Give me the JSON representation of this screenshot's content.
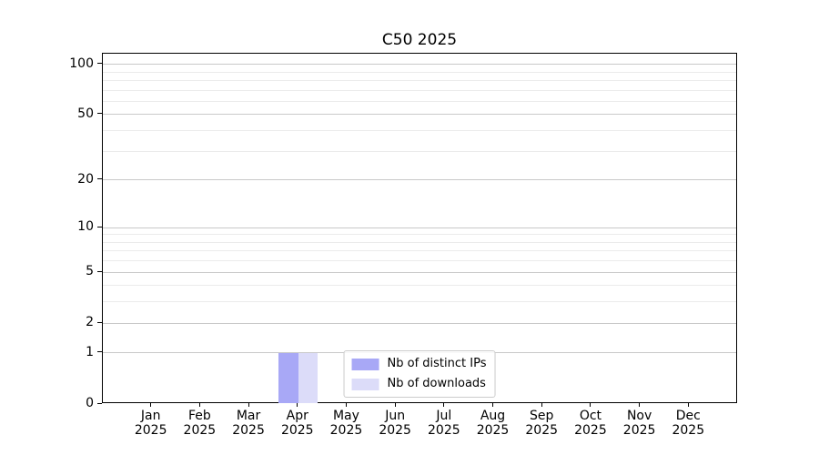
{
  "figure": {
    "title": "C50 2025"
  },
  "chart_data": {
    "type": "bar",
    "title": "C50 2025",
    "xlabel": "",
    "ylabel": "",
    "categories": [
      "Jan 2025",
      "Feb 2025",
      "Mar 2025",
      "Apr 2025",
      "May 2025",
      "Jun 2025",
      "Jul 2025",
      "Aug 2025",
      "Sep 2025",
      "Oct 2025",
      "Nov 2025",
      "Dec 2025"
    ],
    "x_tick_months": [
      "Jan",
      "Feb",
      "Mar",
      "Apr",
      "May",
      "Jun",
      "Jul",
      "Aug",
      "Sep",
      "Oct",
      "Nov",
      "Dec"
    ],
    "x_tick_year": "2025",
    "series": [
      {
        "name": "Nb of distinct IPs",
        "color": "#a8a8f6",
        "values": [
          0,
          0,
          0,
          1,
          0,
          0,
          0,
          0,
          0,
          0,
          0,
          0
        ]
      },
      {
        "name": "Nb of downloads",
        "color": "#dcdcf9",
        "values": [
          0,
          0,
          0,
          1,
          0,
          0,
          0,
          0,
          0,
          0,
          0,
          0
        ]
      }
    ],
    "y_scale": "log10(1+v)",
    "y_ticks": [
      0,
      1,
      2,
      5,
      10,
      20,
      50,
      100
    ],
    "y_minor_ticks": [
      3,
      4,
      6,
      7,
      8,
      9,
      30,
      40,
      60,
      70,
      80,
      90
    ],
    "ylim": [
      0,
      118
    ],
    "grid": true,
    "legend_position": "lower center",
    "colors": {
      "major_grid": "#c9c9c9",
      "minor_grid": "#ebebeb",
      "axis": "#000000",
      "background": "#ffffff"
    }
  }
}
